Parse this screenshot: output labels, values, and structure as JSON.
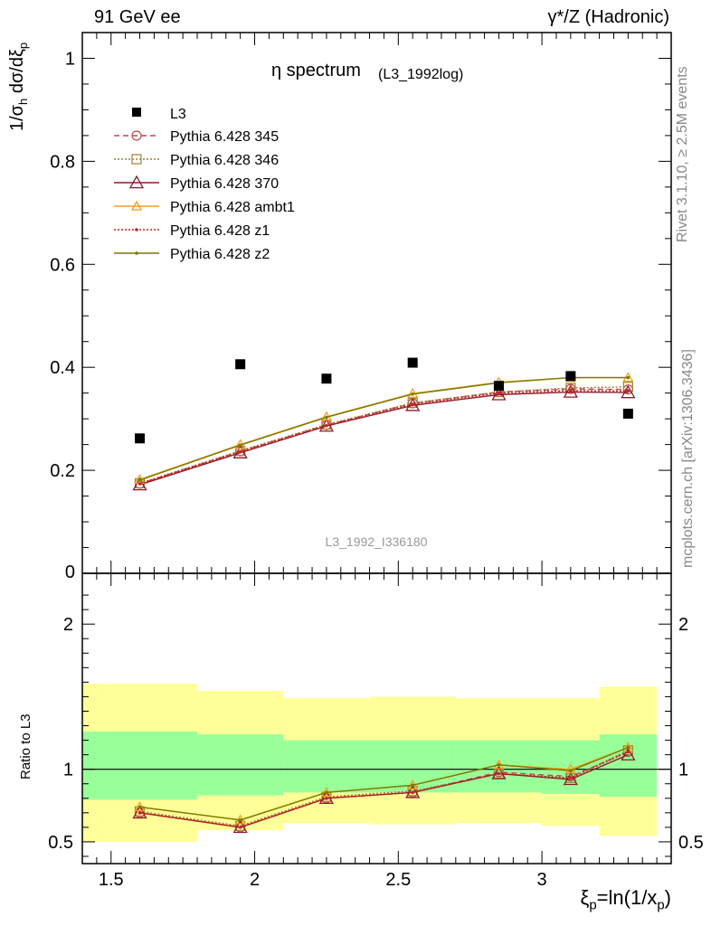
{
  "header": {
    "left": "91 GeV ee",
    "right": "γ*/Z (Hadronic)"
  },
  "side_labels": {
    "rivet": "Rivet 3.1.10, ≥ 2.5M events",
    "mcplots": "mcplots.cern.ch [arXiv:1306.3436]"
  },
  "watermark": "L3_1992_I336180",
  "chart_data": [
    {
      "type": "scatter",
      "title": "η spectrum",
      "title_sub": "(L3_1992log)",
      "ylabel": "1/σh dσ/dξp",
      "ylim": [
        0,
        1.05
      ],
      "yticks": [
        0.2,
        0.4,
        0.6,
        0.8,
        1
      ],
      "ytick_labels": [
        "0.2",
        "0.4",
        "0.6",
        "0.8",
        "1"
      ],
      "ytick_partial_label": "0",
      "x": [
        1.6,
        1.95,
        2.25,
        2.55,
        2.85,
        3.1,
        3.3
      ],
      "data": {
        "name": "L3",
        "values": [
          0.262,
          0.406,
          0.378,
          0.409,
          0.364,
          0.383,
          0.31
        ]
      },
      "series": [
        {
          "name": "Pythia 6.428 345",
          "color": "#c2464c",
          "dash": "6,4",
          "marker": "circle",
          "values": [
            0.174,
            0.237,
            0.288,
            0.33,
            0.352,
            0.358,
            0.357
          ]
        },
        {
          "name": "Pythia 6.428 346",
          "color": "#a08030",
          "dash": "2,2",
          "marker": "square",
          "values": [
            0.175,
            0.238,
            0.289,
            0.331,
            0.352,
            0.36,
            0.362
          ]
        },
        {
          "name": "Pythia 6.428 370",
          "color": "#8e1b2d",
          "dash": "",
          "marker": "triangle-big",
          "values": [
            0.172,
            0.234,
            0.286,
            0.326,
            0.347,
            0.352,
            0.351
          ]
        },
        {
          "name": "Pythia 6.428 ambt1",
          "color": "#f0a020",
          "dash": "",
          "marker": "triangle",
          "values": [
            0.182,
            0.25,
            0.304,
            0.349,
            0.371,
            0.38,
            0.38
          ]
        },
        {
          "name": "Pythia 6.428 z1",
          "color": "#cc2020",
          "dash": "2,2",
          "marker": "dot",
          "values": [
            0.174,
            0.236,
            0.287,
            0.328,
            0.35,
            0.355,
            0.354
          ]
        },
        {
          "name": "Pythia 6.428 z2",
          "color": "#7a7a00",
          "dash": "",
          "marker": "dot",
          "values": [
            0.181,
            0.249,
            0.303,
            0.348,
            0.37,
            0.38,
            0.38
          ]
        }
      ],
      "legend_position": "top-left"
    },
    {
      "type": "line",
      "ylabel": "Ratio to L3",
      "ylim": [
        0.35,
        2.35
      ],
      "yticks": [
        0.5,
        1,
        2
      ],
      "ytick_labels": [
        "0.5",
        "1",
        "2"
      ],
      "xlim": [
        1.4,
        3.45
      ],
      "xticks": [
        1.5,
        2,
        2.5,
        3
      ],
      "xtick_labels": [
        "1.5",
        "2",
        "2.5",
        "3"
      ],
      "xlabel": "ξp=ln(1/xp)",
      "bins": [
        1.4,
        1.8,
        2.1,
        2.4,
        2.7,
        3.0,
        3.2,
        3.4
      ],
      "band_inner": [
        [
          0.79,
          1.26
        ],
        [
          0.82,
          1.24
        ],
        [
          0.84,
          1.2
        ],
        [
          0.84,
          1.2
        ],
        [
          0.84,
          1.2
        ],
        [
          0.83,
          1.2
        ],
        [
          0.81,
          1.24
        ]
      ],
      "band_outer": [
        [
          0.5,
          1.59
        ],
        [
          0.58,
          1.54
        ],
        [
          0.63,
          1.49
        ],
        [
          0.62,
          1.5
        ],
        [
          0.63,
          1.49
        ],
        [
          0.61,
          1.49
        ],
        [
          0.54,
          1.57
        ]
      ],
      "band_colors": {
        "inner": "#99ff99",
        "outer": "#ffff99"
      },
      "reference": 1,
      "x": [
        1.6,
        1.95,
        2.25,
        2.55,
        2.85,
        3.1,
        3.3
      ],
      "series": [
        {
          "name": "Pythia 6.428 345",
          "values": [
            0.7,
            0.6,
            0.8,
            0.84,
            0.98,
            0.95,
            1.12
          ]
        },
        {
          "name": "Pythia 6.428 346",
          "values": [
            0.71,
            0.61,
            0.81,
            0.85,
            0.97,
            0.94,
            1.13
          ]
        },
        {
          "name": "Pythia 6.428 370",
          "values": [
            0.7,
            0.6,
            0.8,
            0.84,
            0.97,
            0.93,
            1.1
          ]
        },
        {
          "name": "Pythia 6.428 ambt1",
          "values": [
            0.74,
            0.65,
            0.84,
            0.89,
            1.03,
            1.0,
            1.15
          ]
        },
        {
          "name": "Pythia 6.428 z1",
          "values": [
            0.7,
            0.6,
            0.8,
            0.84,
            0.97,
            0.94,
            1.12
          ]
        },
        {
          "name": "Pythia 6.428 z2",
          "values": [
            0.74,
            0.65,
            0.84,
            0.89,
            1.03,
            0.99,
            1.15
          ]
        }
      ]
    }
  ]
}
